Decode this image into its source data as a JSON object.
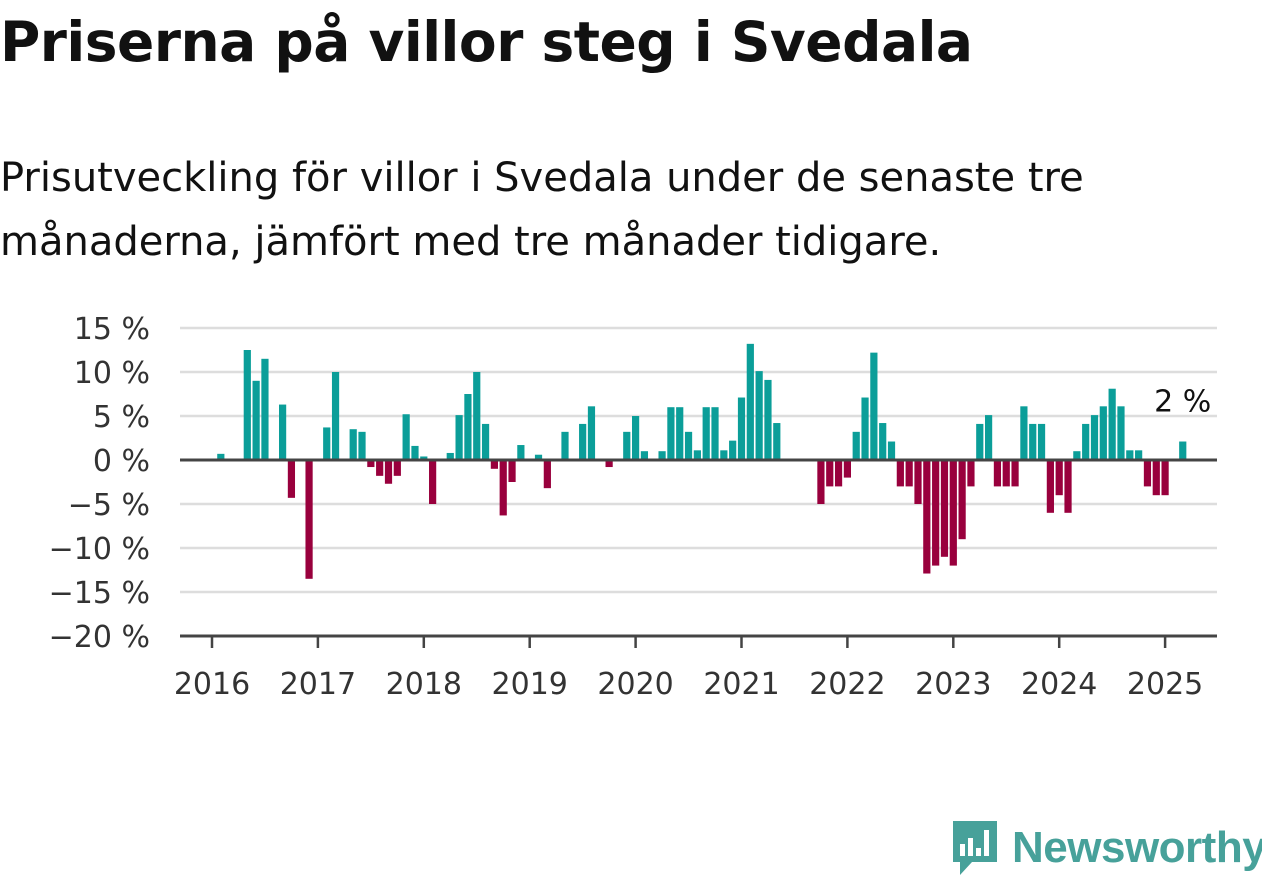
{
  "title": "Priserna på villor steg i Svedala",
  "subtitle": "Prisutveckling för villor i Svedala under de senaste tre månaderna, jämfört med tre månader tidigare.",
  "logo": {
    "text": "Newsworthy",
    "icon": "bar-chart-speech-bubble-icon",
    "color": "#47a19a"
  },
  "chart_data": {
    "type": "bar",
    "x_start": "2016-01",
    "frequency": "monthly",
    "xticks": [
      "2016",
      "2017",
      "2018",
      "2019",
      "2020",
      "2021",
      "2022",
      "2023",
      "2024",
      "2025"
    ],
    "yticks": [
      "15 %",
      "10 %",
      "5 %",
      "0 %",
      "−5 %",
      "−10 %",
      "−15 %",
      "−20 %"
    ],
    "ylim": [
      -20,
      15
    ],
    "unit": "%",
    "grid": true,
    "colors": {
      "positive": "#0b9e99",
      "negative": "#99003d"
    },
    "annotation": {
      "text": "2 %",
      "target": "last"
    },
    "values": [
      null,
      0.7,
      0,
      0,
      12.5,
      9,
      11.5,
      0,
      6.3,
      -4.3,
      0,
      -13.5,
      0,
      3.7,
      10,
      0,
      3.5,
      3.2,
      -0.8,
      -1.8,
      -2.7,
      -1.8,
      5.2,
      1.6,
      0.4,
      -5,
      0,
      0.8,
      5.1,
      7.5,
      10,
      4.1,
      -1,
      -6.3,
      -2.5,
      1.7,
      0,
      0.6,
      -3.2,
      0,
      3.2,
      0,
      4.1,
      6.1,
      0,
      -0.8,
      0,
      3.2,
      5,
      1,
      0,
      1,
      6,
      6,
      3.2,
      1.1,
      6,
      6,
      1.1,
      2.2,
      7.1,
      13.2,
      10.1,
      9.1,
      4.2,
      0,
      0,
      0,
      0,
      -5,
      -3,
      -3,
      -2,
      3.2,
      7.1,
      12.2,
      4.2,
      2.1,
      -3,
      -3,
      -5,
      -12.9,
      -12,
      -11,
      -12,
      -9,
      -3,
      4.1,
      5.1,
      -3,
      -3,
      -3,
      6.1,
      4.1,
      4.1,
      -6,
      -4,
      -6,
      1,
      4.1,
      5.1,
      6.1,
      8.1,
      6.1,
      1.1,
      1.1,
      -3,
      -4,
      -4,
      0,
      2.1
    ]
  }
}
